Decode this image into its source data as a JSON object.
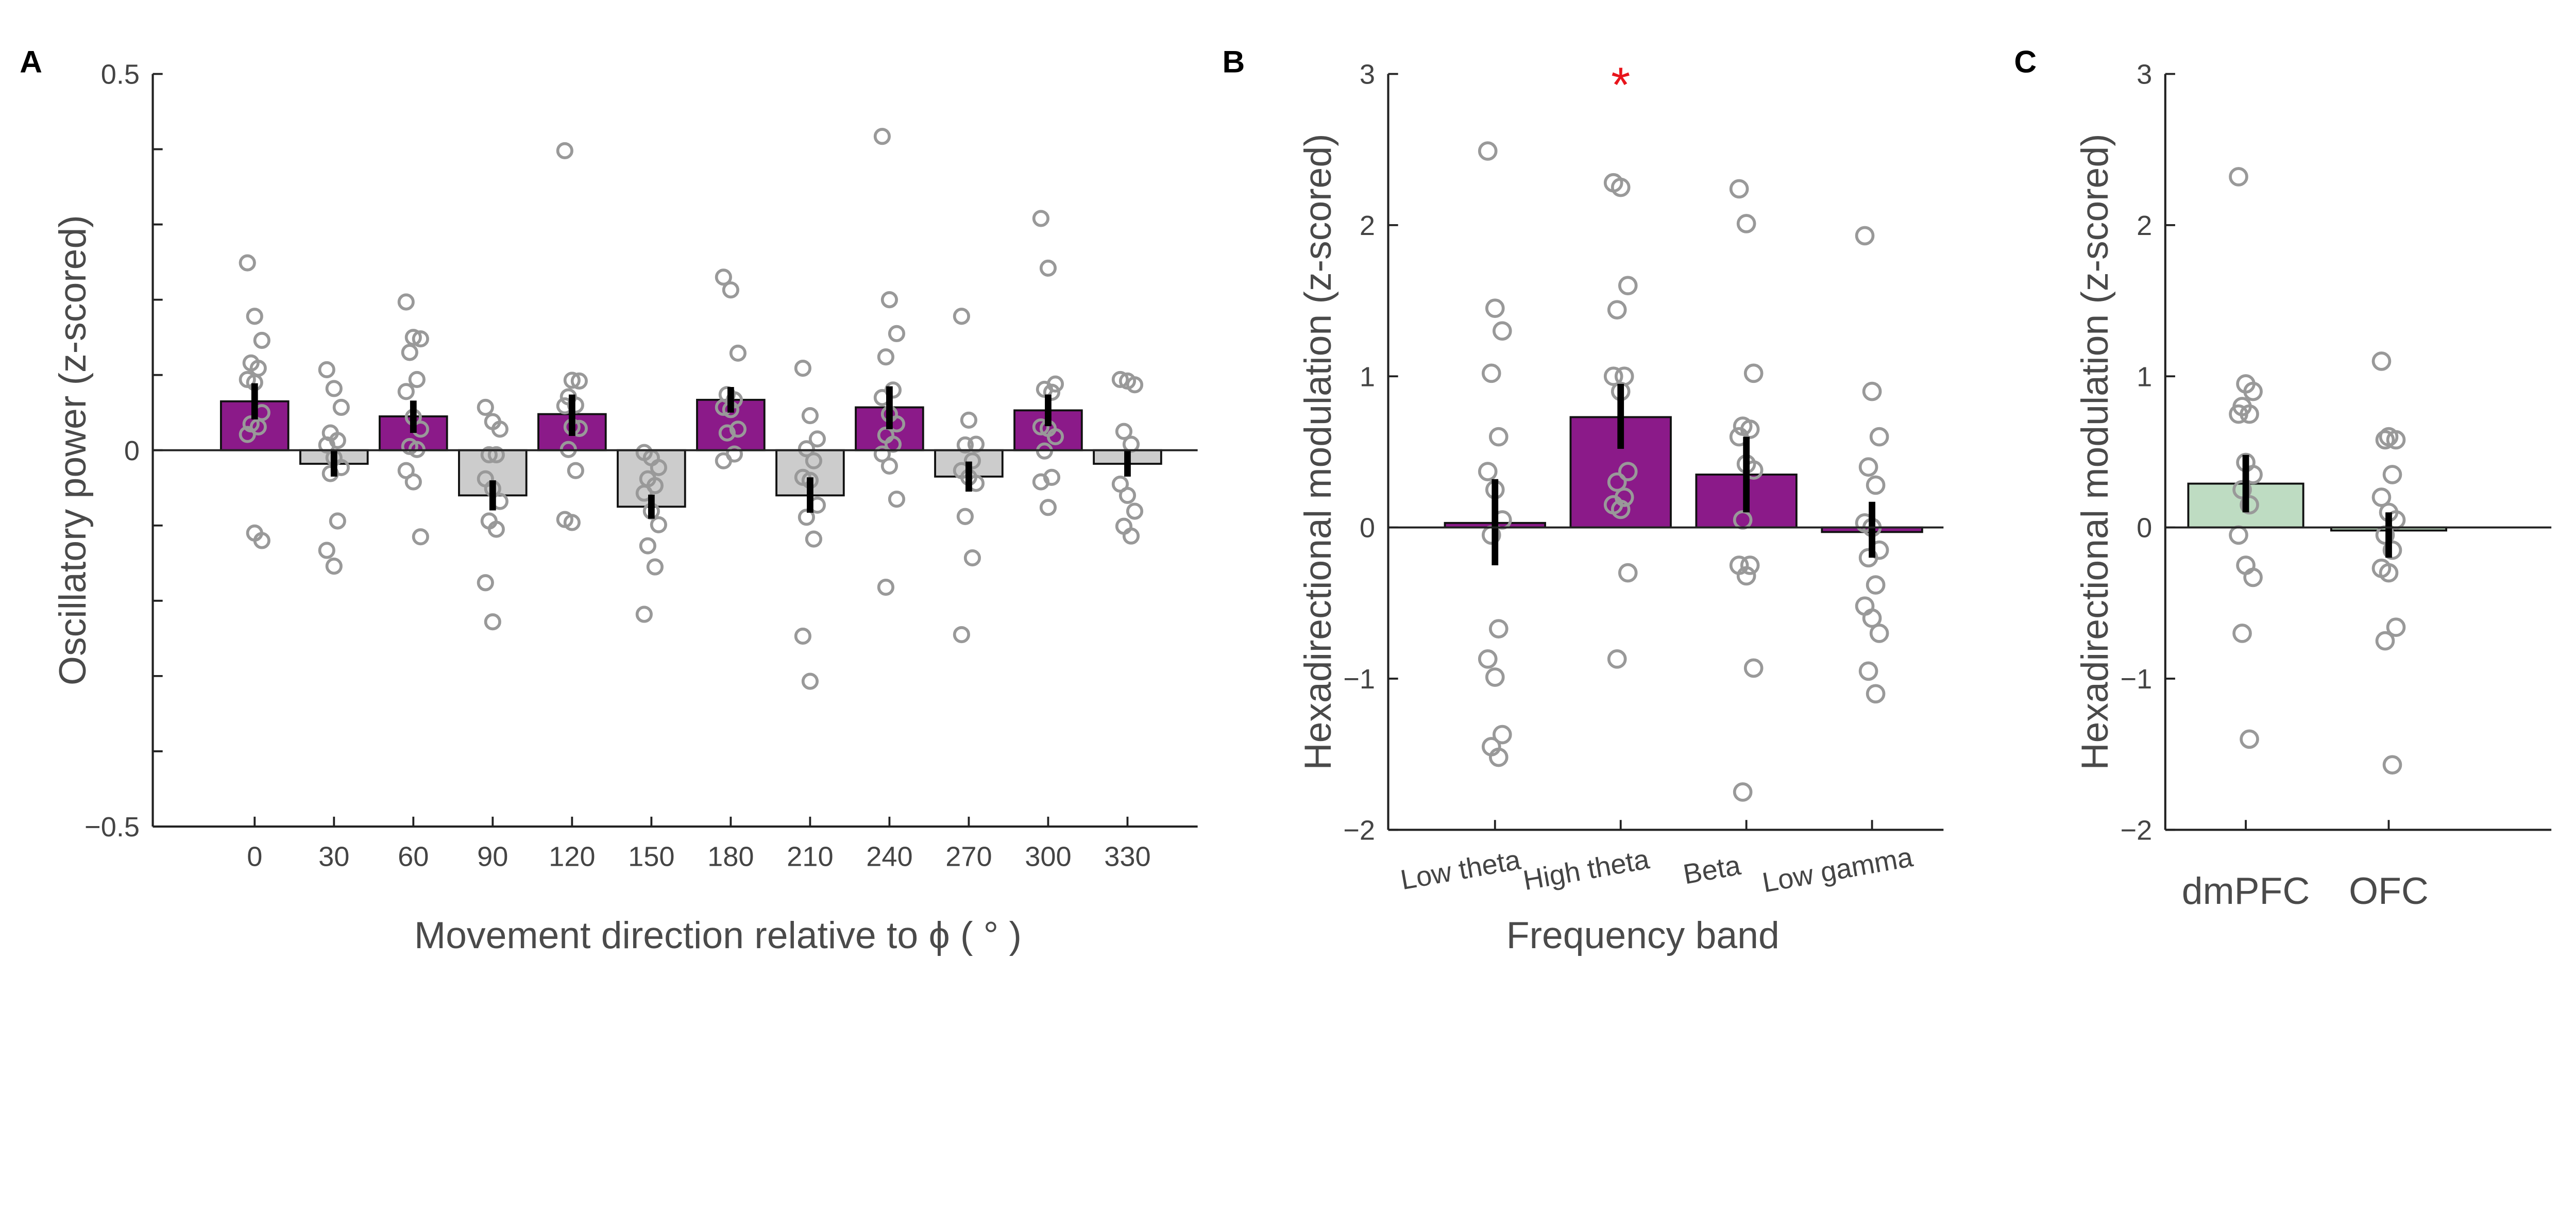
{
  "panels": [
    {
      "letter": "A"
    },
    {
      "letter": "B"
    },
    {
      "letter": "C"
    }
  ],
  "chart_data": [
    {
      "type": "bar",
      "panel": "A",
      "xlabel": "Movement direction relative to  ϕ ( ° )",
      "ylabel": "Oscillatory power (z-scored)",
      "ylim": [
        -0.5,
        0.5
      ],
      "yticks": [
        "-0.5",
        "0",
        "0.5"
      ],
      "yticks_values": [
        -0.5,
        0,
        0.5
      ],
      "minor_tick_step": 0.1,
      "categories": [
        "0",
        "30",
        "60",
        "90",
        "120",
        "150",
        "180",
        "210",
        "240",
        "270",
        "300",
        "330"
      ],
      "values": [
        0.065,
        -0.018,
        0.045,
        -0.06,
        0.048,
        -0.075,
        0.067,
        -0.06,
        0.057,
        -0.035,
        0.053,
        -0.018
      ],
      "bar_colors": [
        "#8B1A89",
        "#CCCCCC",
        "#8B1A89",
        "#CCCCCC",
        "#8B1A89",
        "#CCCCCC",
        "#8B1A89",
        "#CCCCCC",
        "#8B1A89",
        "#CCCCCC",
        "#8B1A89",
        "#CCCCCC"
      ],
      "error": [
        [
          0.041,
          0.089
        ],
        [
          -0.035,
          0.0
        ],
        [
          0.023,
          0.066
        ],
        [
          -0.08,
          -0.04
        ],
        [
          0.019,
          0.074
        ],
        [
          -0.091,
          -0.059
        ],
        [
          0.05,
          0.084
        ],
        [
          -0.083,
          -0.036
        ],
        [
          0.028,
          0.085
        ],
        [
          -0.055,
          -0.015
        ],
        [
          0.032,
          0.074
        ],
        [
          -0.035,
          0.0
        ]
      ],
      "points": [
        [
          0.249,
          0.178,
          0.146,
          0.116,
          0.109,
          0.094,
          0.09,
          0.05,
          0.035,
          0.031,
          0.021,
          -0.11,
          -0.12
        ],
        [
          0.107,
          0.082,
          0.057,
          0.023,
          0.013,
          0.007,
          -0.01,
          -0.023,
          -0.031,
          -0.094,
          -0.133,
          -0.154
        ],
        [
          0.197,
          0.15,
          0.148,
          0.13,
          0.094,
          0.078,
          0.044,
          0.028,
          0.005,
          0.001,
          -0.027,
          -0.042,
          -0.115
        ],
        [
          0.057,
          0.038,
          0.028,
          -0.006,
          -0.006,
          -0.038,
          -0.051,
          -0.068,
          -0.094,
          -0.105,
          -0.176,
          -0.228
        ],
        [
          0.398,
          0.093,
          0.092,
          0.071,
          0.06,
          0.059,
          0.031,
          0.029,
          0.001,
          -0.027,
          -0.092,
          -0.096
        ],
        [
          -0.003,
          -0.01,
          -0.023,
          -0.038,
          -0.047,
          -0.057,
          -0.081,
          -0.099,
          -0.127,
          -0.155,
          -0.218
        ],
        [
          0.23,
          0.213,
          0.129,
          0.074,
          0.067,
          0.057,
          0.054,
          0.028,
          0.023,
          -0.005,
          -0.014
        ],
        [
          0.109,
          0.046,
          0.015,
          0.002,
          -0.014,
          -0.036,
          -0.04,
          -0.073,
          -0.089,
          -0.118,
          -0.247,
          -0.307
        ],
        [
          0.417,
          0.2,
          0.155,
          0.124,
          0.08,
          0.07,
          0.048,
          0.035,
          0.02,
          0.008,
          -0.005,
          -0.021,
          -0.065,
          -0.182
        ],
        [
          0.178,
          0.04,
          0.008,
          0.007,
          -0.014,
          -0.027,
          -0.036,
          -0.044,
          -0.088,
          -0.143,
          -0.245
        ],
        [
          0.308,
          0.242,
          0.088,
          0.081,
          0.077,
          0.031,
          0.029,
          0.018,
          -0.001,
          -0.036,
          -0.042,
          -0.076
        ],
        [
          0.094,
          0.092,
          0.087,
          0.025,
          0.008,
          -0.045,
          -0.06,
          -0.081,
          -0.101,
          -0.114
        ]
      ],
      "point_color": "#999999"
    },
    {
      "type": "bar",
      "panel": "B",
      "xlabel": "Frequency band",
      "ylabel": "Hexadirectional modulation (z-scored)",
      "ylim": [
        -2,
        3
      ],
      "yticks": [
        "-2",
        "-1",
        "0",
        "1",
        "2",
        "3"
      ],
      "yticks_values": [
        -2,
        -1,
        0,
        1,
        2,
        3
      ],
      "categories": [
        "Low theta",
        "High theta",
        "Beta",
        "Low gamma"
      ],
      "values": [
        0.03,
        0.73,
        0.35,
        -0.03
      ],
      "bar_colors": [
        "#8B1A89",
        "#8B1A89",
        "#8B1A89",
        "#8B1A89"
      ],
      "error": [
        [
          -0.25,
          0.32
        ],
        [
          0.52,
          0.95
        ],
        [
          0.1,
          0.6
        ],
        [
          -0.2,
          0.17
        ]
      ],
      "points": [
        [
          2.49,
          1.45,
          1.3,
          1.02,
          0.6,
          0.37,
          0.25,
          0.05,
          -0.05,
          -0.67,
          -0.87,
          -0.99,
          -1.37,
          -1.45,
          -1.52
        ],
        [
          2.28,
          2.25,
          1.6,
          1.44,
          1.0,
          1.0,
          0.9,
          0.37,
          0.3,
          0.2,
          0.15,
          0.12,
          -0.3,
          -0.87
        ],
        [
          2.24,
          2.01,
          1.02,
          0.67,
          0.65,
          0.6,
          0.42,
          0.38,
          0.05,
          -0.25,
          -0.25,
          -0.32,
          -0.93,
          -1.75
        ],
        [
          1.93,
          0.9,
          0.6,
          0.4,
          0.28,
          0.03,
          0.0,
          -0.15,
          -0.2,
          -0.38,
          -0.52,
          -0.6,
          -0.7,
          -0.95,
          -1.1
        ]
      ],
      "point_color": "#999999",
      "annotations": [
        {
          "text": "*",
          "category": "High theta",
          "color": "#E8141B"
        }
      ]
    },
    {
      "type": "bar",
      "panel": "C",
      "xlabel": "",
      "ylabel": "Hexadirectional modulation (z-scored)",
      "ylim": [
        -2,
        3
      ],
      "yticks": [
        "-2",
        "-1",
        "0",
        "1",
        "2",
        "3"
      ],
      "yticks_values": [
        -2,
        -1,
        0,
        1,
        2,
        3
      ],
      "categories": [
        "dmPFC",
        "OFC"
      ],
      "values": [
        0.29,
        -0.02
      ],
      "bar_colors": [
        "#BEDCC2",
        "#BEDCC2"
      ],
      "error": [
        [
          0.1,
          0.48
        ],
        [
          -0.2,
          0.1
        ]
      ],
      "points": [
        [
          2.32,
          0.95,
          0.9,
          0.8,
          0.75,
          0.75,
          0.43,
          0.35,
          0.25,
          0.15,
          -0.05,
          -0.25,
          -0.33,
          -0.7,
          -1.4
        ],
        [
          1.1,
          0.6,
          0.58,
          0.58,
          0.35,
          0.2,
          0.1,
          0.05,
          -0.05,
          -0.15,
          -0.27,
          -0.3,
          -0.66,
          -0.75,
          -1.57
        ]
      ],
      "point_color": "#999999"
    }
  ]
}
